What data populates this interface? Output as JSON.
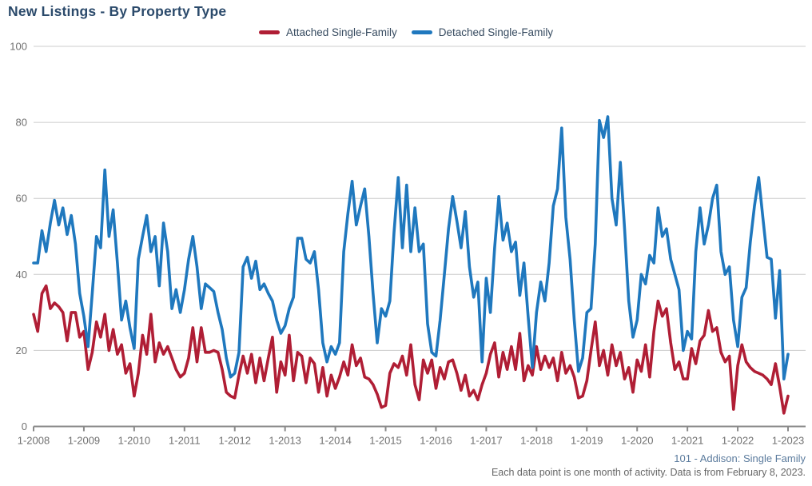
{
  "title": "New Listings - By Property Type",
  "legend": {
    "items": [
      {
        "label": "Attached Single-Family",
        "color": "#b01e35"
      },
      {
        "label": "Detached Single-Family",
        "color": "#1f78be"
      }
    ]
  },
  "footer": {
    "source": "101 - Addison: Single Family",
    "note": "Each data point is one month of activity. Data is from February 8, 2023."
  },
  "colors": {
    "grid": "#cccccc",
    "axis": "#8a8a8a",
    "axis_text": "#707070",
    "attached": "#b01e35",
    "detached": "#1f78be"
  },
  "chart_data": {
    "type": "line",
    "x_interval": "monthly",
    "x_start": "1-2008",
    "x_end": "1-2023",
    "x_tick_labels": [
      "1-2008",
      "1-2009",
      "1-2010",
      "1-2011",
      "1-2012",
      "1-2013",
      "1-2014",
      "1-2015",
      "1-2016",
      "1-2017",
      "1-2018",
      "1-2019",
      "1-2020",
      "1-2021",
      "1-2022",
      "1-2023"
    ],
    "y_tick_labels": [
      "0",
      "20",
      "40",
      "60",
      "80",
      "100"
    ],
    "y_ticks": [
      0,
      20,
      40,
      60,
      80,
      100
    ],
    "ylim": [
      0,
      100
    ],
    "grid": "horizontal",
    "legend_position": "top-center",
    "series": [
      {
        "name": "Attached Single-Family",
        "color": "#b01e35",
        "values": [
          29.5,
          25,
          35,
          37,
          31,
          32.5,
          31.5,
          30,
          22.5,
          30,
          30,
          23.5,
          25,
          15,
          19.5,
          27.5,
          23.5,
          29.5,
          20,
          25.5,
          19,
          21.5,
          14,
          16.5,
          8,
          14,
          24,
          19,
          29.5,
          17,
          22,
          19,
          21,
          18,
          15,
          13,
          14,
          18,
          26,
          17,
          26,
          19.5,
          19.5,
          20,
          19.5,
          15,
          9,
          8,
          7.5,
          13.5,
          18.5,
          14,
          19,
          11.5,
          18,
          12,
          18,
          23.5,
          9,
          17,
          13.5,
          24,
          12,
          19.5,
          18.5,
          11.5,
          18,
          16.5,
          9,
          15.5,
          8,
          13.5,
          10,
          13,
          17,
          13.5,
          21.5,
          16,
          18,
          13,
          12.5,
          11,
          8.5,
          5,
          5.5,
          14,
          16.5,
          15.5,
          18.5,
          13.5,
          21.5,
          11,
          7,
          17.5,
          14,
          17.5,
          10,
          15.5,
          12.5,
          17,
          17.5,
          14,
          9.5,
          13.5,
          8,
          9.5,
          7,
          11,
          14,
          19,
          22,
          13,
          19.5,
          15,
          21,
          15,
          24.5,
          12,
          16,
          13.5,
          21,
          15,
          18.5,
          15.5,
          18,
          12,
          19.5,
          14,
          16,
          13,
          7.5,
          8,
          12,
          20,
          27.5,
          16,
          20,
          13.5,
          21.5,
          16,
          19.5,
          12.5,
          15.5,
          9,
          17.5,
          14.5,
          21.5,
          13,
          25,
          33,
          29,
          31,
          22,
          15,
          17,
          12.5,
          12.5,
          20.5,
          16.5,
          22.5,
          24,
          30.5,
          25,
          26,
          19.5,
          17,
          18.5,
          4.5,
          16,
          21.5,
          17,
          15.5,
          14.5,
          14,
          13.5,
          12.5,
          11,
          16.5,
          10.5,
          3.5,
          8
        ]
      },
      {
        "name": "Detached Single-Family",
        "color": "#1f78be",
        "values": [
          43,
          43,
          51.5,
          46,
          53.5,
          59.5,
          53,
          57.5,
          50.5,
          55.5,
          48,
          35,
          29,
          21,
          35,
          50,
          47,
          67.5,
          50,
          57,
          43,
          28,
          33,
          26,
          20.5,
          44,
          50,
          55.5,
          46,
          50,
          37,
          53.5,
          46,
          31,
          36,
          30,
          36,
          44,
          50,
          42,
          31,
          37.5,
          36.5,
          35.5,
          30,
          25.5,
          18,
          13,
          14,
          19.5,
          42,
          44.5,
          39,
          43.5,
          36,
          37.5,
          35,
          33,
          28,
          24.5,
          26.5,
          31,
          34,
          49.5,
          49.5,
          44,
          43,
          46,
          36,
          22,
          17,
          21,
          19,
          22,
          46,
          56,
          64.5,
          53,
          58,
          62.5,
          50,
          35,
          22,
          31,
          29,
          33,
          51,
          65.5,
          47,
          63.5,
          46,
          57.5,
          46,
          48,
          27,
          19.5,
          18.5,
          28,
          40,
          52,
          60.5,
          54,
          47,
          56.5,
          42,
          34,
          38,
          17,
          39,
          30,
          47,
          60.5,
          49,
          53.5,
          46,
          48.5,
          34.5,
          43,
          29,
          15.5,
          30,
          38,
          33,
          43,
          58,
          62.5,
          78.5,
          55,
          44,
          28,
          14.5,
          18,
          30,
          31,
          48,
          80.5,
          76,
          81.5,
          60,
          53,
          69.5,
          52,
          33,
          23.5,
          28,
          40,
          37.5,
          45,
          43,
          57.5,
          50,
          52,
          44,
          40,
          36,
          20,
          25,
          23,
          46,
          57.5,
          48,
          53,
          60,
          63.5,
          46,
          40,
          42,
          28,
          21,
          34,
          36.5,
          48.5,
          58,
          65.5,
          55,
          44.5,
          44,
          28.5,
          41,
          12.5,
          19
        ]
      }
    ]
  },
  "layout": {
    "plot": {
      "x_first": 42,
      "x_last": 986,
      "x_grid_right": 1008,
      "y_zero": 533.5,
      "y_hundred": 58
    }
  }
}
